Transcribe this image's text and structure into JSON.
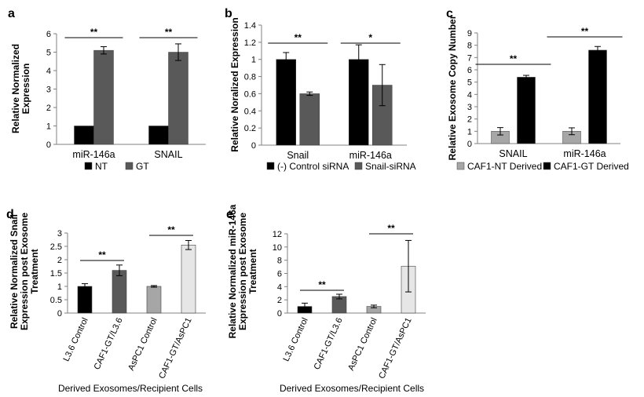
{
  "chart_data": [
    {
      "panel": "a",
      "type": "bar",
      "categories": [
        "miR-146a",
        "SNAIL"
      ],
      "series": [
        {
          "name": "NT",
          "color": "#000000",
          "values": [
            1,
            1
          ],
          "errors": [
            0,
            0
          ]
        },
        {
          "name": "GT",
          "color": "#595959",
          "values": [
            5.1,
            5.0
          ],
          "errors": [
            0.2,
            0.45
          ]
        }
      ],
      "ylabel_lines": [
        "Relative Normalized",
        "Expression"
      ],
      "xlabel": "",
      "ylim": [
        0,
        6
      ],
      "yticks": [
        "0",
        "1",
        "2",
        "3",
        "4",
        "5",
        "6"
      ],
      "significance": [
        {
          "category": 0,
          "label": "**"
        },
        {
          "category": 1,
          "label": "**"
        }
      ],
      "legend": "bottom"
    },
    {
      "panel": "b",
      "type": "bar",
      "categories": [
        "Snail",
        "miR-146a"
      ],
      "series": [
        {
          "name": "(-) Control siRNA",
          "color": "#000000",
          "values": [
            1.0,
            1.0
          ],
          "errors": [
            0.08,
            0.17
          ]
        },
        {
          "name": "Snail-siRNA",
          "color": "#595959",
          "values": [
            0.6,
            0.7
          ],
          "errors": [
            0.02,
            0.24
          ]
        }
      ],
      "ylabel_lines": [
        "Relative Noralized Expression"
      ],
      "xlabel": "",
      "ylim": [
        0,
        1.4
      ],
      "yticks": [
        "0",
        "0.2",
        "0.4",
        "0.6",
        "0.8",
        "1",
        "1.2",
        "1.4"
      ],
      "significance": [
        {
          "category": 0,
          "label": "**"
        },
        {
          "category": 1,
          "label": "*"
        }
      ],
      "legend": "bottom"
    },
    {
      "panel": "c",
      "type": "bar",
      "categories": [
        "SNAIL",
        "miR-146a"
      ],
      "series": [
        {
          "name": "CAF1-NT Derived",
          "color": "#a6a6a6",
          "values": [
            1.0,
            1.0
          ],
          "errors": [
            0.3,
            0.28
          ]
        },
        {
          "name": "CAF1-GT Derived",
          "color": "#000000",
          "values": [
            5.4,
            7.6
          ],
          "errors": [
            0.15,
            0.3
          ]
        }
      ],
      "ylabel_lines": [
        "Relative Exosome Copy Number"
      ],
      "xlabel": "",
      "ylim": [
        0,
        9
      ],
      "yticks": [
        "0",
        "1",
        "2",
        "3",
        "4",
        "5",
        "6",
        "7",
        "8",
        "9"
      ],
      "significance": [
        {
          "category": 0,
          "label": "**"
        },
        {
          "category": 1,
          "label": "**"
        }
      ],
      "legend": "bottom"
    },
    {
      "panel": "d",
      "type": "bar",
      "categories": [
        "L3.6 Control",
        "CAF1-GT/L3.6",
        "AsPC1 Control",
        "CAF1-GT/AsPC1"
      ],
      "values": [
        1.0,
        1.6,
        1.0,
        2.55
      ],
      "errors": [
        0.1,
        0.2,
        0.03,
        0.17
      ],
      "colors": [
        "#000000",
        "#595959",
        "#a6a6a6",
        "#e6e6e6"
      ],
      "ylabel_lines": [
        "Relative Normalized Snail",
        "Expression post Exosome",
        "Treatment"
      ],
      "xlabel": "Derived Exosomes/Recipient Cells",
      "ylim": [
        0,
        3
      ],
      "yticks": [
        "0",
        "0.5",
        "1",
        "1.5",
        "2",
        "2.5",
        "3"
      ],
      "significance": [
        {
          "from": 0,
          "to": 1,
          "label": "**"
        },
        {
          "from": 2,
          "to": 3,
          "label": "**"
        }
      ]
    },
    {
      "panel": "e",
      "type": "bar",
      "categories": [
        "L3.6 Control",
        "CAF1-GT/L3.6",
        "AsPC1 Control",
        "CAF1-GT/AsPC1"
      ],
      "values": [
        1.0,
        2.5,
        1.0,
        7.1
      ],
      "errors": [
        0.5,
        0.35,
        0.2,
        3.9
      ],
      "colors": [
        "#000000",
        "#595959",
        "#a6a6a6",
        "#e6e6e6"
      ],
      "ylabel_lines": [
        "Relative Normalized miR-146a",
        "Expression post Exosome",
        "Treatment"
      ],
      "xlabel": "Derived Exosomes/Recipient Cells",
      "ylim": [
        0,
        12
      ],
      "yticks": [
        "0",
        "2",
        "4",
        "6",
        "8",
        "10",
        "12"
      ],
      "significance": [
        {
          "from": 0,
          "to": 1,
          "label": "**"
        },
        {
          "from": 2,
          "to": 3,
          "label": "**"
        }
      ]
    }
  ]
}
